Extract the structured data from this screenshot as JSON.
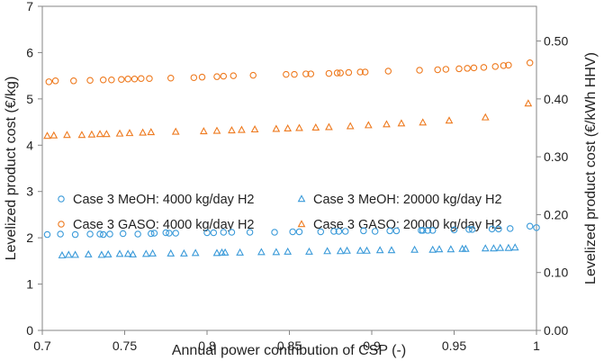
{
  "chart_data": {
    "type": "scatter",
    "xlabel": "Annual power contribution of CSP (-)",
    "ylabel": "Levelized product cost (€/kg)",
    "y2label": "Levelized product cost (€/kWh HHV)",
    "xlim": [
      0.7,
      1.0
    ],
    "ylim": [
      0,
      7
    ],
    "y2lim": [
      0,
      0.56
    ],
    "xticks": [
      "0.7",
      "0.75",
      "0.8",
      "0.85",
      "0.9",
      "0.95",
      "1"
    ],
    "yticks": [
      "0",
      "1",
      "2",
      "3",
      "4",
      "5",
      "6",
      "7"
    ],
    "y2ticks": [
      "0.00",
      "0.10",
      "0.20",
      "0.30",
      "0.40",
      "0.50"
    ],
    "gridlines": false,
    "legend_position": "middle-center",
    "series": [
      {
        "name": "Case 3 MeOH: 4000 kg/day H2",
        "color": "#3a9ad9",
        "marker": "circle",
        "x": [
          0.703,
          0.711,
          0.72,
          0.729,
          0.735,
          0.737,
          0.741,
          0.749,
          0.758,
          0.766,
          0.768,
          0.775,
          0.777,
          0.781,
          0.8,
          0.804,
          0.81,
          0.815,
          0.826,
          0.841,
          0.852,
          0.856,
          0.869,
          0.877,
          0.88,
          0.884,
          0.895,
          0.902,
          0.911,
          0.915,
          0.93,
          0.931,
          0.934,
          0.937,
          0.95,
          0.959,
          0.961,
          0.973,
          0.977,
          0.984,
          0.996,
          1.0
        ],
        "y": [
          2.07,
          2.08,
          2.07,
          2.08,
          2.08,
          2.07,
          2.08,
          2.09,
          2.08,
          2.09,
          2.1,
          2.11,
          2.1,
          2.1,
          2.11,
          2.11,
          2.12,
          2.12,
          2.12,
          2.12,
          2.13,
          2.13,
          2.13,
          2.14,
          2.14,
          2.14,
          2.15,
          2.14,
          2.15,
          2.15,
          2.16,
          2.16,
          2.16,
          2.16,
          2.17,
          2.18,
          2.18,
          2.19,
          2.19,
          2.2,
          2.25,
          2.22
        ]
      },
      {
        "name": "Case 3 MeOH: 20000 kg/day H2",
        "color": "#3a9ad9",
        "marker": "triangle",
        "x": [
          0.712,
          0.716,
          0.72,
          0.728,
          0.736,
          0.74,
          0.747,
          0.752,
          0.755,
          0.763,
          0.767,
          0.778,
          0.786,
          0.793,
          0.806,
          0.809,
          0.811,
          0.82,
          0.833,
          0.842,
          0.849,
          0.862,
          0.873,
          0.881,
          0.885,
          0.893,
          0.897,
          0.905,
          0.912,
          0.926,
          0.937,
          0.941,
          0.948,
          0.955,
          0.957,
          0.969,
          0.974,
          0.978,
          0.983,
          0.987
        ],
        "y": [
          1.62,
          1.63,
          1.63,
          1.64,
          1.63,
          1.64,
          1.65,
          1.65,
          1.64,
          1.65,
          1.66,
          1.66,
          1.66,
          1.67,
          1.67,
          1.68,
          1.68,
          1.68,
          1.69,
          1.69,
          1.7,
          1.7,
          1.71,
          1.71,
          1.72,
          1.72,
          1.72,
          1.73,
          1.73,
          1.74,
          1.74,
          1.75,
          1.75,
          1.76,
          1.76,
          1.77,
          1.77,
          1.78,
          1.78,
          1.79
        ]
      },
      {
        "name": "Case 3 GASO: 4000 kg/day H2",
        "color": "#ee7a1f",
        "marker": "circle",
        "x": [
          0.704,
          0.708,
          0.719,
          0.729,
          0.737,
          0.742,
          0.748,
          0.752,
          0.756,
          0.76,
          0.765,
          0.778,
          0.792,
          0.797,
          0.806,
          0.81,
          0.816,
          0.828,
          0.848,
          0.853,
          0.86,
          0.863,
          0.874,
          0.879,
          0.881,
          0.886,
          0.893,
          0.896,
          0.91,
          0.929,
          0.94,
          0.945,
          0.953,
          0.958,
          0.962,
          0.968,
          0.975,
          0.98,
          0.983,
          0.996
        ],
        "y": [
          5.37,
          5.39,
          5.39,
          5.4,
          5.41,
          5.41,
          5.42,
          5.43,
          5.43,
          5.44,
          5.44,
          5.45,
          5.46,
          5.47,
          5.48,
          5.49,
          5.5,
          5.51,
          5.53,
          5.53,
          5.54,
          5.54,
          5.55,
          5.56,
          5.56,
          5.57,
          5.58,
          5.58,
          5.6,
          5.62,
          5.63,
          5.64,
          5.65,
          5.66,
          5.67,
          5.68,
          5.7,
          5.72,
          5.73,
          5.78
        ]
      },
      {
        "name": "Case 3 GASO: 20000 kg/day H2",
        "color": "#ee7a1f",
        "marker": "triangle",
        "x": [
          0.703,
          0.707,
          0.715,
          0.724,
          0.73,
          0.735,
          0.739,
          0.747,
          0.753,
          0.761,
          0.766,
          0.781,
          0.798,
          0.806,
          0.815,
          0.821,
          0.829,
          0.842,
          0.849,
          0.856,
          0.866,
          0.874,
          0.887,
          0.898,
          0.909,
          0.918,
          0.931,
          0.947,
          0.969,
          0.995
        ],
        "y": [
          4.2,
          4.21,
          4.22,
          4.22,
          4.23,
          4.24,
          4.24,
          4.25,
          4.26,
          4.27,
          4.28,
          4.29,
          4.3,
          4.31,
          4.32,
          4.33,
          4.34,
          4.35,
          4.36,
          4.37,
          4.38,
          4.39,
          4.41,
          4.43,
          4.45,
          4.47,
          4.49,
          4.53,
          4.6,
          4.9
        ]
      }
    ]
  }
}
